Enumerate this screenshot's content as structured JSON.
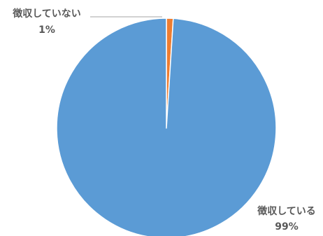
{
  "chart_data": {
    "type": "pie",
    "title": "",
    "start": "top",
    "direction": "clockwise",
    "legend": "none",
    "slices": [
      {
        "label": "徴収していない",
        "value": 1,
        "value_label": "1%",
        "color": "#ED7D31"
      },
      {
        "label": "徴収している",
        "value": 99,
        "value_label": "99%",
        "color": "#5B9BD5"
      }
    ]
  }
}
